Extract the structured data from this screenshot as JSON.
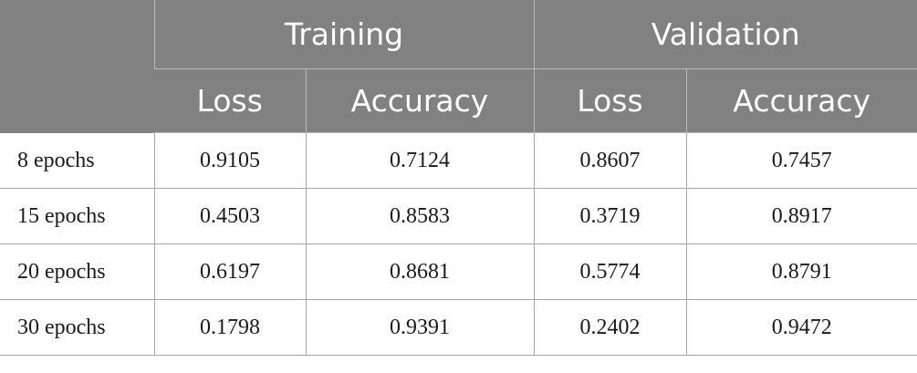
{
  "table": {
    "groups": [
      "Training",
      "Validation"
    ],
    "metrics": [
      "Loss",
      "Accuracy",
      "Loss",
      "Accuracy"
    ],
    "rows": [
      {
        "label": "8 epochs",
        "values": [
          "0.9105",
          "0.7124",
          "0.8607",
          "0.7457"
        ]
      },
      {
        "label": "15 epochs",
        "values": [
          "0.4503",
          "0.8583",
          "0.3719",
          "0.8917"
        ]
      },
      {
        "label": "20 epochs",
        "values": [
          "0.6197",
          "0.8681",
          "0.5774",
          "0.8791"
        ]
      },
      {
        "label": "30 epochs",
        "values": [
          "0.1798",
          "0.9391",
          "0.2402",
          "0.9472"
        ]
      }
    ]
  },
  "colors": {
    "header_background": "#808180",
    "header_text": "#ffffff",
    "body_text": "#1a1a1a",
    "grid_line": "#a6a6a6"
  }
}
